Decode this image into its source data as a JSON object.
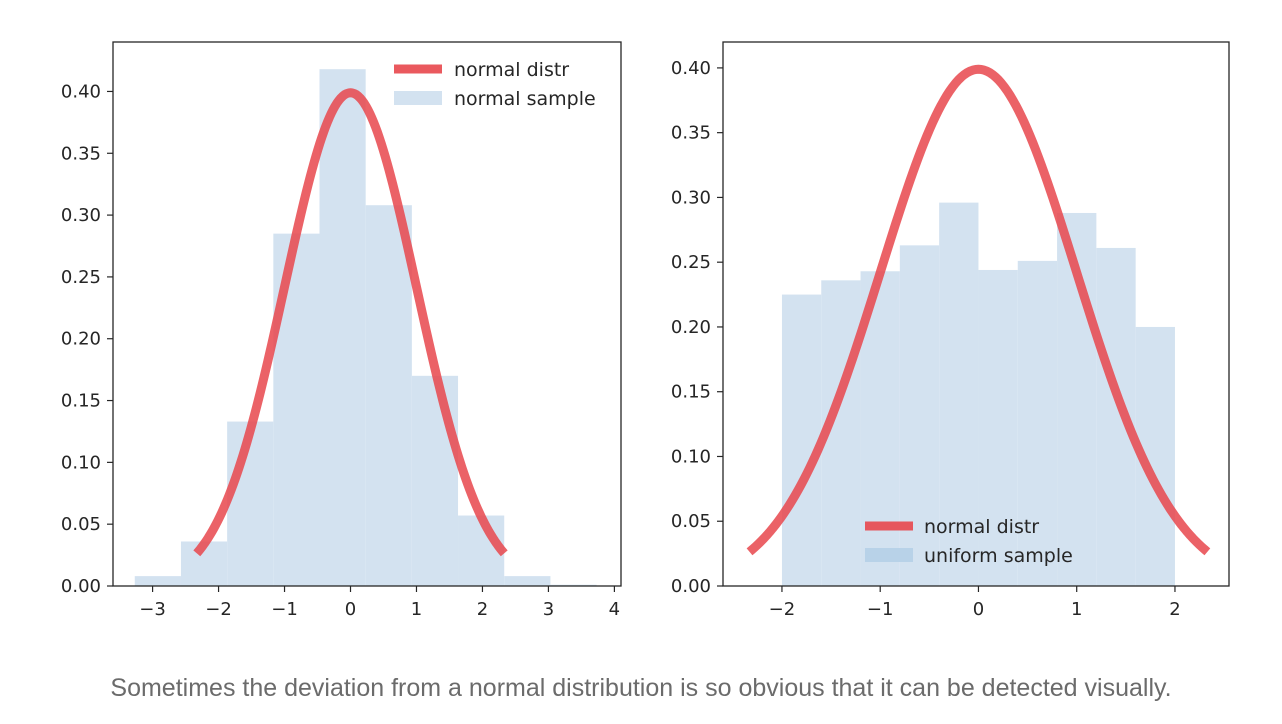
{
  "caption": "Sometimes the deviation from a normal distribution is so obvious that it can be detected visually.",
  "colors": {
    "curve": "#e8474c",
    "bars": "#d3e2f0",
    "legend_patch_uniform": "#b8d2e8",
    "axis": "#262626"
  },
  "chart_data": [
    {
      "type": "bar",
      "subtype": "histogram_with_density_curve",
      "xlim": [
        -3.6,
        4.1
      ],
      "ylim": [
        0,
        0.44
      ],
      "xticks": [
        -3,
        -2,
        -1,
        0,
        1,
        2,
        3,
        4
      ],
      "xtick_labels": [
        "−3",
        "−2",
        "−1",
        "0",
        "1",
        "2",
        "3",
        "4"
      ],
      "yticks": [
        0,
        0.05,
        0.1,
        0.15,
        0.2,
        0.25,
        0.3,
        0.35,
        0.4
      ],
      "ytick_labels": [
        "0.00",
        "0.05",
        "0.10",
        "0.15",
        "0.20",
        "0.25",
        "0.30",
        "0.35",
        "0.40"
      ],
      "legend_position": "upper right",
      "series": [
        {
          "name": "normal distr",
          "kind": "pdf_curve",
          "mean": 0,
          "sd": 1,
          "x_range": [
            -2.33,
            2.33
          ]
        },
        {
          "name": "normal sample",
          "kind": "histogram",
          "bin_edges": [
            -3.27,
            -2.57,
            -1.87,
            -1.17,
            -0.47,
            0.23,
            0.93,
            1.63,
            2.33,
            3.03,
            3.73
          ],
          "values": [
            0.008,
            0.036,
            0.133,
            0.285,
            0.418,
            0.308,
            0.17,
            0.057,
            0.008,
            0.001
          ]
        }
      ]
    },
    {
      "type": "bar",
      "subtype": "histogram_with_density_curve",
      "xlim": [
        -2.6,
        2.55
      ],
      "ylim": [
        0,
        0.42
      ],
      "xticks": [
        -2,
        -1,
        0,
        1,
        2
      ],
      "xtick_labels": [
        "−2",
        "−1",
        "0",
        "1",
        "2"
      ],
      "yticks": [
        0,
        0.05,
        0.1,
        0.15,
        0.2,
        0.25,
        0.3,
        0.35,
        0.4
      ],
      "ytick_labels": [
        "0.00",
        "0.05",
        "0.10",
        "0.15",
        "0.20",
        "0.25",
        "0.30",
        "0.35",
        "0.40"
      ],
      "legend_position": "lower center",
      "series": [
        {
          "name": "normal distr",
          "kind": "pdf_curve",
          "mean": 0,
          "sd": 1,
          "x_range": [
            -2.33,
            2.33
          ]
        },
        {
          "name": "uniform sample",
          "kind": "histogram",
          "bin_edges": [
            -2.0,
            -1.6,
            -1.2,
            -0.8,
            -0.4,
            0.0,
            0.4,
            0.8,
            1.2,
            1.6,
            2.0
          ],
          "values": [
            0.225,
            0.236,
            0.243,
            0.263,
            0.296,
            0.244,
            0.251,
            0.288,
            0.261,
            0.2
          ]
        }
      ]
    }
  ]
}
